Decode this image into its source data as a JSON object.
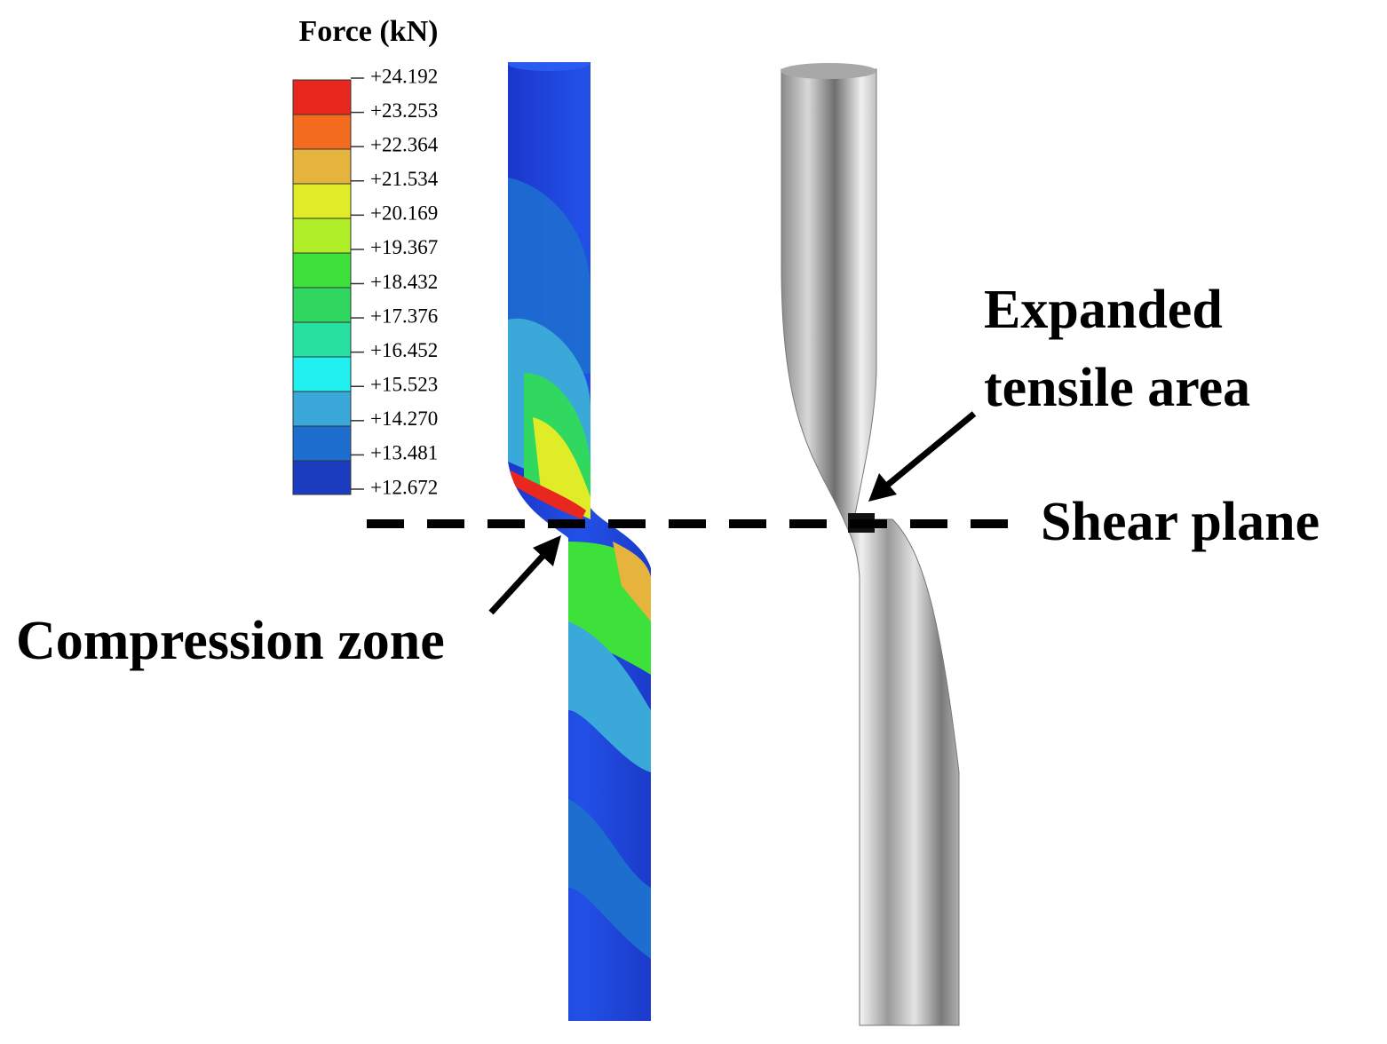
{
  "legend": {
    "title": "Force (kN)",
    "ticks": [
      "+24.192",
      "+23.253",
      "+22.364",
      "+21.534",
      "+20.169",
      "+19.367",
      "+18.432",
      "+17.376",
      "+16.452",
      "+15.523",
      "+14.270",
      "+13.481",
      "+12.672"
    ]
  },
  "annotations": {
    "expanded_tensile_area": {
      "line1": "Expanded",
      "line2": "tensile area"
    },
    "shear_plane": "Shear plane",
    "compression_zone": "Compression zone"
  }
}
